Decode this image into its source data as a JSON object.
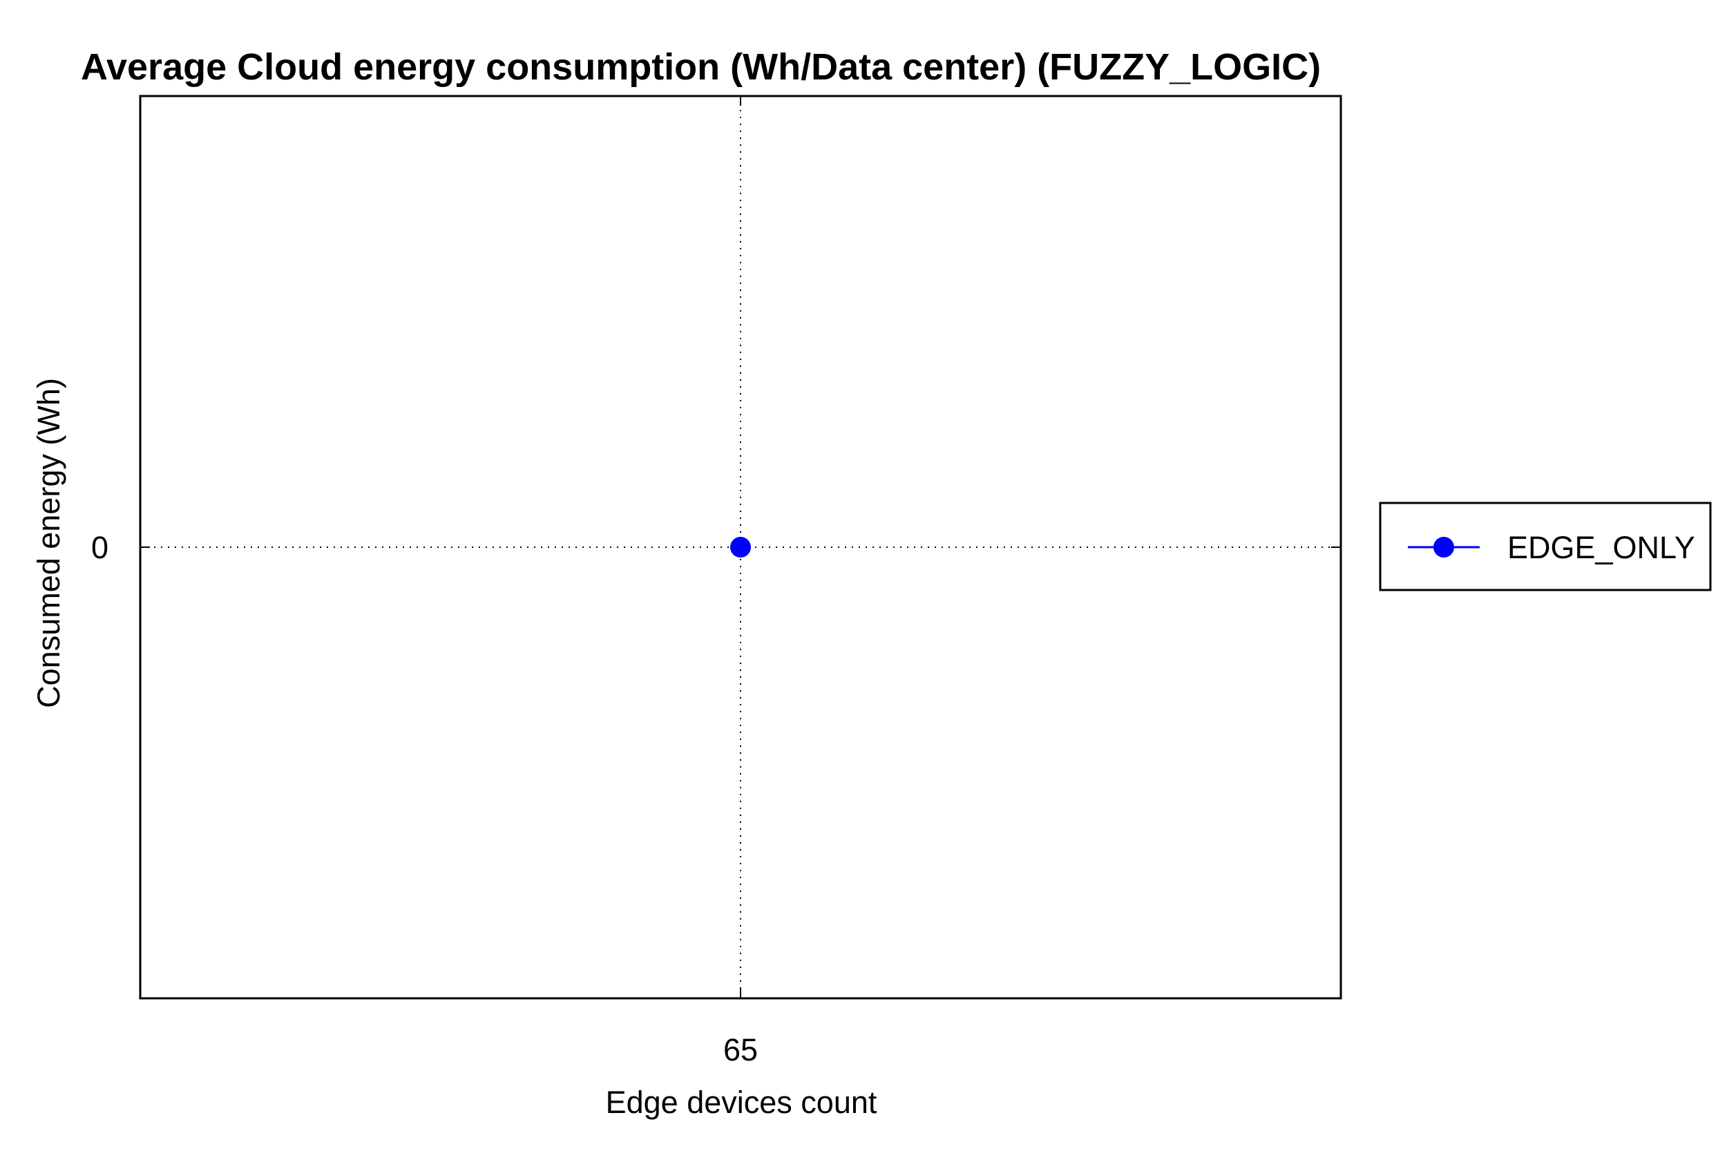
{
  "chart_data": {
    "type": "line",
    "title": "Average Cloud energy consumption (Wh/Data center) (FUZZY_LOGIC)",
    "xlabel": "Edge devices count",
    "ylabel": "Consumed energy (Wh)",
    "x_ticks": [
      "65"
    ],
    "y_ticks": [
      "0"
    ],
    "xlim": [
      64,
      66
    ],
    "ylim": [
      -1,
      1
    ],
    "grid": true,
    "legend_position": "outside-right",
    "series": [
      {
        "name": "EDGE_ONLY",
        "color": "#0000ff",
        "marker": "circle",
        "x": [
          65
        ],
        "y": [
          0
        ]
      }
    ]
  }
}
